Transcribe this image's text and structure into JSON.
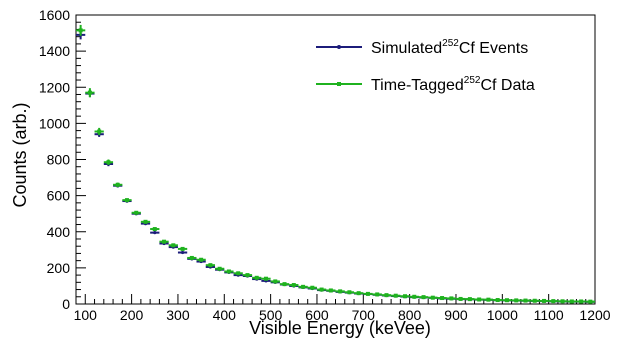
{
  "chart_data": {
    "type": "scatter",
    "xlabel": "Visible Energy (keVee)",
    "ylabel": "Counts (arb.)",
    "xlim": [
      80,
      1200
    ],
    "ylim": [
      0,
      1600
    ],
    "x_ticks": [
      100,
      200,
      300,
      400,
      500,
      600,
      700,
      800,
      900,
      1000,
      1100,
      1200
    ],
    "y_ticks": [
      0,
      200,
      400,
      600,
      800,
      1000,
      1200,
      1400,
      1600
    ],
    "grid": false,
    "legend_position": "top-right",
    "x_error": 10,
    "series": [
      {
        "legend_pre": "Simulated",
        "legend_sup": "252",
        "legend_post": "Cf Events",
        "color": "#1c1c7a",
        "marker": "dot",
        "x": [
          90,
          110,
          130,
          150,
          170,
          190,
          210,
          230,
          250,
          270,
          290,
          310,
          330,
          350,
          370,
          390,
          410,
          430,
          450,
          470,
          490,
          510,
          530,
          550,
          570,
          590,
          610,
          630,
          650,
          670,
          690,
          710,
          730,
          750,
          770,
          790,
          810,
          830,
          850,
          870,
          890,
          910,
          930,
          950,
          970,
          990,
          1010,
          1030,
          1050,
          1070,
          1090,
          1110,
          1130,
          1150,
          1170,
          1190
        ],
        "y": [
          1490,
          1165,
          940,
          775,
          655,
          570,
          500,
          445,
          395,
          335,
          315,
          285,
          250,
          235,
          205,
          190,
          175,
          160,
          155,
          138,
          128,
          120,
          108,
          100,
          92,
          86,
          77,
          73,
          67,
          63,
          58,
          55,
          51,
          47,
          44,
          41,
          38,
          36,
          34,
          31,
          29,
          27,
          26,
          24,
          23,
          21,
          20,
          19,
          18,
          17,
          16,
          15,
          14,
          13,
          13,
          12
        ],
        "y_err": [
          25,
          20,
          15,
          12,
          10,
          9,
          8,
          8,
          7,
          7,
          6,
          6,
          6,
          5,
          5,
          5,
          5,
          5,
          5,
          5,
          4,
          4,
          4,
          4,
          4,
          4,
          4,
          4,
          4,
          4,
          3,
          3,
          3,
          3,
          3,
          3,
          3,
          3,
          3,
          3,
          3,
          3,
          3,
          3,
          3,
          3,
          3,
          3,
          3,
          3,
          3,
          3,
          3,
          3,
          3,
          3
        ]
      },
      {
        "legend_pre": "Time-Tagged",
        "legend_sup": "252",
        "legend_post": "Cf Data",
        "color": "#1fb21f",
        "marker": "square",
        "x": [
          90,
          110,
          130,
          150,
          170,
          190,
          210,
          230,
          250,
          270,
          290,
          310,
          330,
          350,
          370,
          390,
          410,
          430,
          450,
          470,
          490,
          510,
          530,
          550,
          570,
          590,
          610,
          630,
          650,
          670,
          690,
          710,
          730,
          750,
          770,
          790,
          810,
          830,
          850,
          870,
          890,
          910,
          930,
          950,
          970,
          990,
          1010,
          1030,
          1050,
          1070,
          1090,
          1110,
          1130,
          1150,
          1170,
          1190
        ],
        "y": [
          1515,
          1170,
          955,
          785,
          660,
          575,
          505,
          455,
          415,
          345,
          325,
          305,
          255,
          245,
          215,
          195,
          180,
          170,
          160,
          145,
          140,
          125,
          110,
          105,
          95,
          90,
          80,
          75,
          70,
          65,
          60,
          56,
          53,
          49,
          46,
          43,
          40,
          38,
          35,
          33,
          31,
          28,
          27,
          25,
          24,
          22,
          21,
          20,
          19,
          18,
          17,
          16,
          15,
          14,
          14,
          13
        ],
        "y_err": [
          30,
          25,
          20,
          15,
          12,
          10,
          9,
          9,
          8,
          8,
          7,
          7,
          6,
          6,
          5,
          5,
          5,
          5,
          5,
          5,
          5,
          4,
          4,
          4,
          4,
          4,
          4,
          4,
          4,
          4,
          3,
          3,
          3,
          3,
          3,
          3,
          3,
          3,
          3,
          3,
          3,
          3,
          3,
          3,
          3,
          3,
          3,
          3,
          3,
          3,
          3,
          3,
          3,
          3,
          3,
          3
        ]
      }
    ]
  }
}
